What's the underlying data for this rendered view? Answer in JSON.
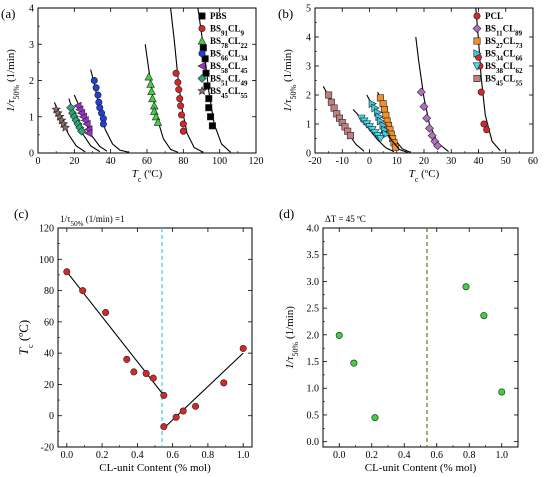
{
  "chart_data": [
    {
      "type": "scatter",
      "panel_label": "(a)",
      "xlabel_main": "T",
      "xlabel_sub": "c",
      "xlabel_unit": " (ºC)",
      "ylabel_main": "1/τ",
      "ylabel_sub": "50%",
      "ylabel_unit": " (1/min)",
      "xlim": [
        0,
        120
      ],
      "ylim": [
        0,
        4
      ],
      "xticks": [
        "0",
        "20",
        "40",
        "60",
        "80",
        "100",
        "120"
      ],
      "yticks": [
        "0",
        "1",
        "2",
        "3",
        "4"
      ],
      "legend_position": "top-right",
      "series": [
        {
          "name": "PBS",
          "marker": "square",
          "color": "#000000",
          "points": [
            [
              91,
              2.9
            ],
            [
              92,
              2.6
            ],
            [
              92.5,
              2.2
            ],
            [
              93,
              1.85
            ],
            [
              94,
              1.5
            ],
            [
              94,
              1.25
            ],
            [
              95,
              1.0
            ],
            [
              96,
              0.75
            ]
          ],
          "curve": [
            [
              88,
              4.0
            ],
            [
              90,
              3.3
            ],
            [
              92,
              2.6
            ],
            [
              94,
              1.7
            ],
            [
              97,
              0.8
            ],
            [
              101,
              0.25
            ],
            [
              106,
              0.02
            ]
          ]
        },
        {
          "name_parts": [
            "BS",
            "91",
            "CL",
            "9"
          ],
          "marker": "circle",
          "color": "#d62728",
          "points": [
            [
              76,
              2.2
            ],
            [
              77,
              1.95
            ],
            [
              77.5,
              1.75
            ],
            [
              78,
              1.5
            ],
            [
              78.5,
              1.3
            ],
            [
              79,
              1.05
            ],
            [
              80,
              0.8
            ],
            [
              80,
              0.6
            ]
          ],
          "curve": [
            [
              73,
              4.0
            ],
            [
              75,
              3.1
            ],
            [
              77,
              2.1
            ],
            [
              79,
              1.3
            ],
            [
              82,
              0.55
            ],
            [
              86,
              0.15
            ],
            [
              91,
              0.02
            ]
          ]
        },
        {
          "name_parts": [
            "BS",
            "78",
            "CL",
            "22"
          ],
          "marker": "triangle",
          "color": "#3fd140",
          "points": [
            [
              61,
              2.1
            ],
            [
              62,
              1.9
            ],
            [
              62.5,
              1.7
            ],
            [
              63,
              1.5
            ],
            [
              64,
              1.3
            ],
            [
              64,
              1.15
            ],
            [
              65,
              1.0
            ],
            [
              66,
              0.85
            ]
          ],
          "curve": [
            [
              59,
              3.0
            ],
            [
              61,
              2.3
            ],
            [
              63,
              1.6
            ],
            [
              66,
              0.9
            ],
            [
              69,
              0.4
            ],
            [
              73,
              0.1
            ],
            [
              77,
              0.02
            ]
          ]
        },
        {
          "name_parts": [
            "BS",
            "66",
            "CL",
            "34"
          ],
          "marker": "circle",
          "color": "#1f3fd6",
          "points": [
            [
              31,
              2.0
            ],
            [
              32,
              1.8
            ],
            [
              33,
              1.6
            ],
            [
              33.5,
              1.4
            ],
            [
              34,
              1.25
            ],
            [
              35,
              1.1
            ],
            [
              36,
              0.95
            ],
            [
              36,
              0.8
            ]
          ],
          "curve": [
            [
              29,
              2.3
            ],
            [
              31,
              1.9
            ],
            [
              34,
              1.2
            ],
            [
              37,
              0.65
            ],
            [
              41,
              0.25
            ],
            [
              45,
              0.08
            ],
            [
              50,
              0.02
            ]
          ]
        },
        {
          "name_parts": [
            "BS",
            "58",
            "CL",
            "45"
          ],
          "marker": "triangle-left",
          "color": "#9b30c8",
          "points": [
            [
              22,
              1.3
            ],
            [
              23,
              1.2
            ],
            [
              24,
              1.1
            ],
            [
              25,
              1.0
            ],
            [
              26,
              0.9
            ],
            [
              27,
              0.8
            ],
            [
              28,
              0.65
            ],
            [
              28,
              0.55
            ]
          ],
          "curve": [
            [
              20,
              1.6
            ],
            [
              23,
              1.25
            ],
            [
              26,
              0.85
            ],
            [
              30,
              0.45
            ],
            [
              34,
              0.18
            ],
            [
              38,
              0.05
            ]
          ]
        },
        {
          "name_parts": [
            "BS",
            "51",
            "CL",
            "49"
          ],
          "marker": "diamond",
          "color": "#28a878",
          "points": [
            [
              18,
              1.25
            ],
            [
              19,
              1.1
            ],
            [
              20,
              1.0
            ],
            [
              21,
              0.9
            ],
            [
              22,
              0.8
            ],
            [
              23,
              0.7
            ],
            [
              24,
              0.6
            ]
          ],
          "curve": [
            [
              17,
              1.5
            ],
            [
              19,
              1.2
            ],
            [
              22,
              0.85
            ],
            [
              25,
              0.5
            ],
            [
              29,
              0.2
            ],
            [
              34,
              0.04
            ]
          ]
        },
        {
          "name_parts": [
            "BS",
            "45",
            "CL",
            "55"
          ],
          "marker": "star",
          "color": "#8b6b6b",
          "points": [
            [
              10,
              1.2
            ],
            [
              11,
              1.1
            ],
            [
              12,
              1.0
            ],
            [
              13,
              0.9
            ],
            [
              14,
              0.8
            ],
            [
              15,
              0.7
            ]
          ],
          "curve": [
            [
              9,
              1.4
            ],
            [
              11,
              1.15
            ],
            [
              14,
              0.8
            ],
            [
              17,
              0.5
            ],
            [
              21,
              0.2
            ],
            [
              26,
              0.03
            ]
          ]
        }
      ]
    },
    {
      "type": "scatter",
      "panel_label": "(b)",
      "xlabel_main": "T",
      "xlabel_sub": "c",
      "xlabel_unit": " (ºC)",
      "ylabel_main": "1/τ",
      "ylabel_sub": "50%",
      "ylabel_unit": " (1/min)",
      "xlim": [
        -20,
        60
      ],
      "ylim": [
        0,
        5
      ],
      "xticks": [
        "-20",
        "-10",
        "0",
        "10",
        "20",
        "30",
        "40",
        "50",
        "60"
      ],
      "yticks": [
        "0",
        "1",
        "2",
        "3",
        "4",
        "5"
      ],
      "legend_position": "top-right",
      "series": [
        {
          "name": "PCL",
          "marker": "circle",
          "color": "#d62728",
          "points": [
            [
              40,
              3.3
            ],
            [
              40.5,
              3.0
            ],
            [
              41,
              2.1
            ],
            [
              42,
              1.0
            ],
            [
              43,
              0.8
            ]
          ],
          "curve": [
            [
              39,
              5.0
            ],
            [
              40,
              3.9
            ],
            [
              41,
              2.6
            ],
            [
              42.5,
              1.3
            ],
            [
              45,
              0.4
            ],
            [
              48,
              0.08
            ]
          ]
        },
        {
          "name_parts": [
            "BS",
            "11",
            "CL",
            "89"
          ],
          "marker": "diamond",
          "color": "#b070c0",
          "points": [
            [
              19,
              2.1
            ],
            [
              20,
              1.6
            ],
            [
              21,
              1.2
            ],
            [
              22,
              0.85
            ],
            [
              23,
              0.6
            ],
            [
              24,
              0.4
            ],
            [
              25,
              0.25
            ]
          ],
          "curve": [
            [
              17,
              4.0
            ],
            [
              18,
              3.2
            ],
            [
              20,
              1.9
            ],
            [
              22,
              1.0
            ],
            [
              25,
              0.35
            ],
            [
              29,
              0.05
            ]
          ]
        },
        {
          "name_parts": [
            "BS",
            "27",
            "CL",
            "73"
          ],
          "marker": "square",
          "color": "#f0902a",
          "points": [
            [
              4,
              1.9
            ],
            [
              5,
              1.7
            ],
            [
              5.5,
              1.5
            ],
            [
              6,
              1.3
            ],
            [
              6.5,
              1.1
            ],
            [
              7,
              0.95
            ],
            [
              7.5,
              0.8
            ],
            [
              8,
              0.65
            ],
            [
              8.5,
              0.5
            ],
            [
              9,
              0.35
            ],
            [
              9.5,
              0.2
            ]
          ],
          "curve": [
            [
              3,
              2.1
            ],
            [
              5,
              1.6
            ],
            [
              7,
              1.0
            ],
            [
              9,
              0.5
            ],
            [
              12,
              0.15
            ],
            [
              15,
              0.02
            ]
          ]
        },
        {
          "name_parts": [
            "BS",
            "34",
            "CL",
            "66"
          ],
          "marker": "triangle-right",
          "color": "#40c8e0",
          "points": [
            [
              1,
              1.7
            ],
            [
              2,
              1.55
            ],
            [
              3,
              1.4
            ],
            [
              3.5,
              1.25
            ],
            [
              4,
              1.1
            ],
            [
              5,
              0.95
            ],
            [
              5.5,
              0.8
            ],
            [
              6,
              0.65
            ]
          ],
          "curve": [
            [
              -1,
              2.0
            ],
            [
              2,
              1.5
            ],
            [
              5,
              0.95
            ],
            [
              8,
              0.45
            ],
            [
              11,
              0.12
            ],
            [
              14,
              0.02
            ]
          ]
        },
        {
          "name_parts": [
            "BS",
            "38",
            "CL",
            "62"
          ],
          "marker": "triangle-down",
          "color": "#40e0f0",
          "points": [
            [
              -3,
              1.2
            ],
            [
              -2,
              1.1
            ],
            [
              -1,
              1.0
            ],
            [
              0,
              0.9
            ],
            [
              1,
              0.8
            ],
            [
              2,
              0.7
            ],
            [
              3,
              0.6
            ],
            [
              4,
              0.5
            ]
          ],
          "curve": [
            [
              -6,
              1.5
            ],
            [
              -3,
              1.2
            ],
            [
              0,
              0.8
            ],
            [
              3,
              0.45
            ],
            [
              6,
              0.18
            ],
            [
              9,
              0.04
            ]
          ]
        },
        {
          "name_parts": [
            "BS",
            "45",
            "CL",
            "55"
          ],
          "marker": "square",
          "color": "#c08080",
          "points": [
            [
              -15,
              2.0
            ],
            [
              -14,
              1.75
            ],
            [
              -13,
              1.55
            ],
            [
              -12,
              1.35
            ],
            [
              -11,
              1.2
            ],
            [
              -10,
              1.05
            ],
            [
              -9,
              0.9
            ],
            [
              -8,
              0.75
            ],
            [
              -7,
              0.6
            ]
          ],
          "curve": [
            [
              -17,
              2.3
            ],
            [
              -14,
              1.8
            ],
            [
              -11,
              1.2
            ],
            [
              -8,
              0.7
            ],
            [
              -5,
              0.3
            ],
            [
              -2,
              0.06
            ]
          ]
        }
      ]
    },
    {
      "type": "scatter",
      "panel_label": "(c)",
      "annotation_main": "1/τ",
      "annotation_sub": "50%",
      "annotation_rest": " (1/min) =1",
      "ylabel_main": "T",
      "ylabel_sub": "c",
      "ylabel_unit": " (ºC)",
      "xlabel": "CL-unit Content (% mol)",
      "xlim": [
        -0.05,
        1.05
      ],
      "ylim": [
        -20,
        120
      ],
      "xticks": [
        "0.0",
        "0.2",
        "0.4",
        "0.6",
        "0.8",
        "1.0"
      ],
      "yticks": [
        "-20",
        "0",
        "20",
        "40",
        "60",
        "80",
        "100",
        "120"
      ],
      "x": [
        0,
        0.09,
        0.22,
        0.34,
        0.38,
        0.45,
        0.49,
        0.55,
        0.55,
        0.62,
        0.66,
        0.73,
        0.89,
        1.0
      ],
      "y": [
        92,
        80,
        66,
        36,
        28,
        27,
        24,
        13,
        -7,
        -1,
        3,
        6,
        21,
        43
      ],
      "marker": "circle",
      "color": "#d62728",
      "fit_lines": [
        [
          [
            0,
            92
          ],
          [
            0.55,
            13
          ]
        ],
        [
          [
            0.55,
            -8
          ],
          [
            1.0,
            40
          ]
        ]
      ],
      "vline_x": 0.54,
      "vline_color": "#40c8e0"
    },
    {
      "type": "scatter",
      "panel_label": "(d)",
      "annotation": "ΔT = 45 ºC",
      "ylabel_main": "1/τ",
      "ylabel_sub": "50%",
      "ylabel_unit": " (1/min)",
      "xlabel": "CL-unit Content (% mol)",
      "xlim": [
        -0.1,
        1.1
      ],
      "ylim": [
        -0.1,
        4.0
      ],
      "xticks": [
        "0.0",
        "0.2",
        "0.4",
        "0.6",
        "0.8",
        "1.0"
      ],
      "yticks": [
        "0.0",
        "0.5",
        "1.0",
        "1.5",
        "2.0",
        "2.5",
        "3.0",
        "3.5",
        "4.0"
      ],
      "x": [
        0,
        0.09,
        0.22,
        0.78,
        0.89,
        1.0
      ],
      "y": [
        1.99,
        1.47,
        0.45,
        2.9,
        2.36,
        0.93
      ],
      "marker": "circle",
      "color": "#3fd140",
      "vline_x": 0.54,
      "vline_color": "#5a7a20"
    }
  ]
}
